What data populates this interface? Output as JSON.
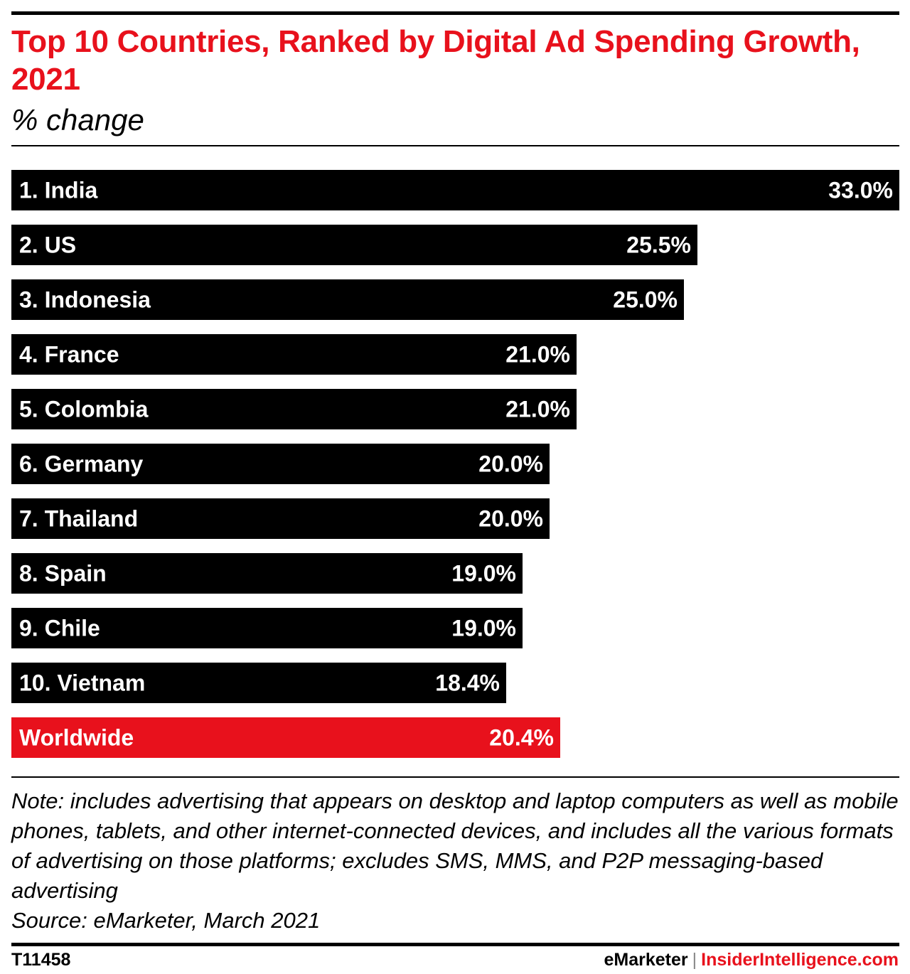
{
  "header": {
    "title": "Top 10 Countries, Ranked by Digital Ad Spending Growth, 2021",
    "subtitle": "% change"
  },
  "chart_data": {
    "type": "bar",
    "orientation": "horizontal",
    "categories": [
      "1. India",
      "2. US",
      "3. Indonesia",
      "4. France",
      "5. Colombia",
      "6. Germany",
      "7. Thailand",
      "8. Spain",
      "9. Chile",
      "10. Vietnam",
      "Worldwide"
    ],
    "values": [
      33.0,
      25.5,
      25.0,
      21.0,
      21.0,
      20.0,
      20.0,
      19.0,
      19.0,
      18.4,
      20.4
    ],
    "value_labels": [
      "33.0%",
      "25.5%",
      "25.0%",
      "21.0%",
      "21.0%",
      "20.0%",
      "20.0%",
      "19.0%",
      "19.0%",
      "18.4%",
      "20.4%"
    ],
    "bar_colors": [
      "#000000",
      "#000000",
      "#000000",
      "#000000",
      "#000000",
      "#000000",
      "#000000",
      "#000000",
      "#000000",
      "#000000",
      "#e8111c"
    ],
    "xlim": [
      0,
      33
    ],
    "grid": false
  },
  "notes": {
    "note": "Note: includes advertising that appears on desktop and laptop computers as well as mobile phones, tablets, and other internet-connected devices, and includes all the various formats of advertising on those platforms; excludes SMS, MMS, and P2P messaging-based advertising",
    "source": "Source: eMarketer, March 2021"
  },
  "footer": {
    "chart_id": "T11458",
    "brand_1": "eMarketer",
    "separator": "|",
    "brand_2": "InsiderIntelligence.com"
  },
  "colors": {
    "accent": "#e8111c",
    "bar": "#000000",
    "text_on_bar": "#ffffff"
  }
}
